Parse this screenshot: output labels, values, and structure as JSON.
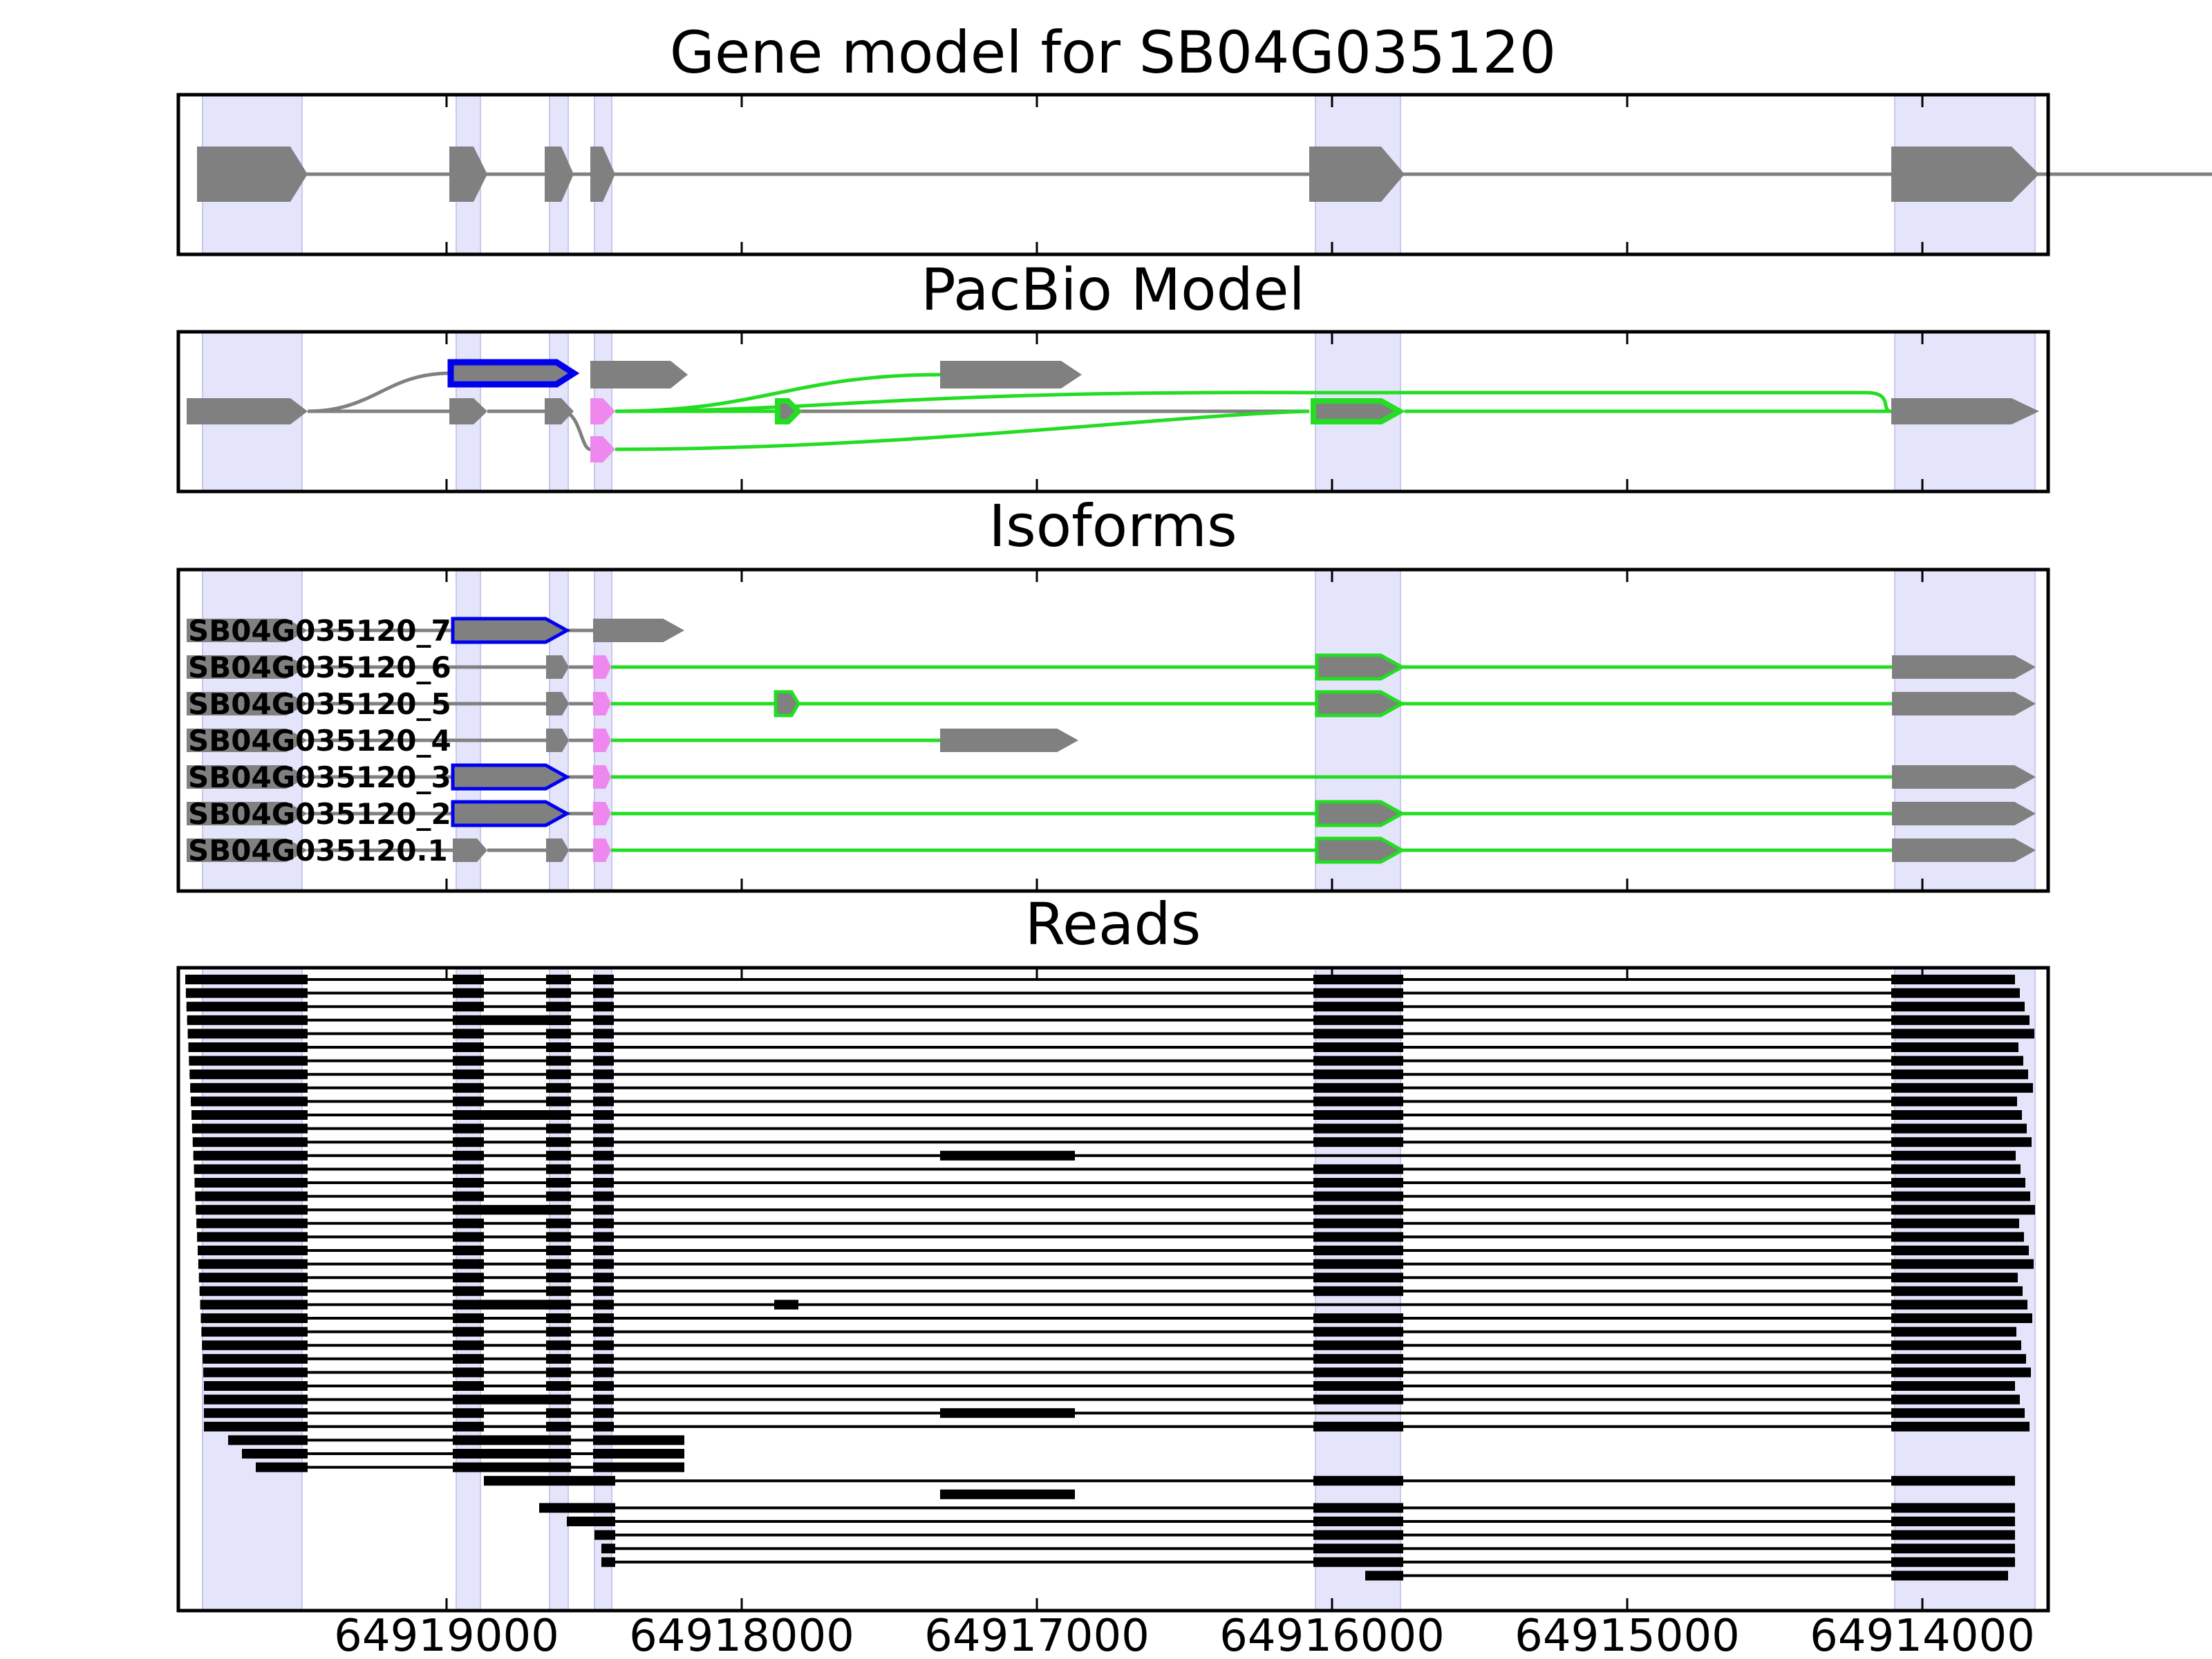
{
  "figure": {
    "colors": {
      "exon": "#808080",
      "highlight": "#e4e4fb",
      "blue_outline": "#0000ee",
      "green": "#22dd22",
      "magenta": "#ee88ee",
      "read": "#000000"
    }
  },
  "panels": {
    "gene_model": {
      "title": "Gene model for SB04G035120"
    },
    "pacbio": {
      "title": "PacBio Model"
    },
    "isoforms": {
      "title": "Isoforms",
      "labels": [
        "SB04G035120_7",
        "SB04G035120_6",
        "SB04G035120_5",
        "SB04G035120_4",
        "SB04G035120_3",
        "SB04G035120_2",
        "SB04G035120.1"
      ]
    },
    "reads": {
      "title": "Reads"
    }
  },
  "axis": {
    "ticks": [
      "64919000",
      "64918000",
      "64917000",
      "64916000",
      "64915000",
      "64914000"
    ]
  }
}
